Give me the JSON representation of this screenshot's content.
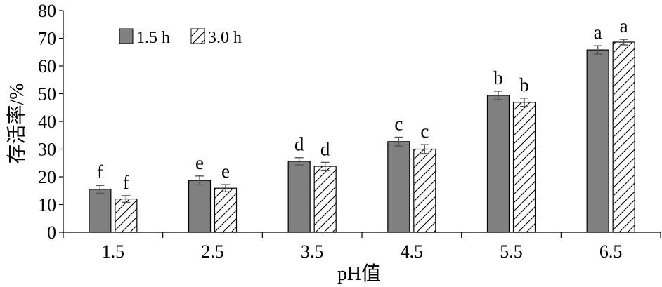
{
  "chart_data": {
    "type": "bar",
    "title": "",
    "xlabel": "pH值",
    "ylabel": "存活率/%",
    "ylim": [
      0,
      80
    ],
    "yticks": [
      0,
      10,
      20,
      30,
      40,
      50,
      60,
      70,
      80
    ],
    "categories": [
      "1.5",
      "2.5",
      "3.5",
      "4.5",
      "5.5",
      "6.5"
    ],
    "legend_position": "top-left",
    "grid": false,
    "series": [
      {
        "name": "1.5 h",
        "style": "solid",
        "color": "#808080",
        "values": [
          15.5,
          18.7,
          25.6,
          32.7,
          49.4,
          65.8
        ],
        "errors": [
          1.4,
          1.6,
          1.3,
          1.6,
          1.5,
          1.5
        ],
        "labels": [
          "f",
          "e",
          "d",
          "c",
          "b",
          "a"
        ]
      },
      {
        "name": "3.0 h",
        "style": "hatched",
        "color": "#ffffff",
        "values": [
          12.0,
          15.9,
          23.8,
          30.0,
          46.9,
          68.6
        ],
        "errors": [
          1.2,
          1.3,
          1.4,
          1.6,
          1.5,
          1.0
        ],
        "labels": [
          "f",
          "e",
          "d",
          "c",
          "b",
          "a"
        ]
      }
    ]
  }
}
